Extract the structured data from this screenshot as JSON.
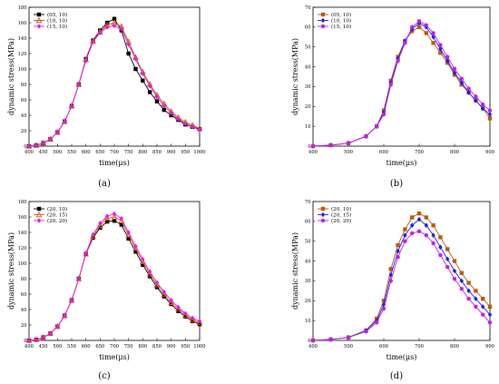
{
  "chart_data": [
    {
      "panel_label": "(a)",
      "type": "line",
      "xlabel": "time(μs)",
      "ylabel": "dynamic stress(MPa)",
      "xlim": [
        400,
        1000
      ],
      "ylim": [
        0,
        180
      ],
      "xticks": [
        400,
        450,
        500,
        550,
        600,
        650,
        700,
        750,
        800,
        850,
        900,
        950,
        1000
      ],
      "yticks": [
        0,
        20,
        40,
        60,
        80,
        100,
        120,
        140,
        160,
        180
      ],
      "legend_position": "top-left",
      "series": [
        {
          "name": "(05, 10)",
          "color": "#000000",
          "marker": "square",
          "x": [
            400,
            425,
            450,
            475,
            500,
            525,
            550,
            575,
            600,
            625,
            650,
            675,
            700,
            725,
            750,
            775,
            800,
            825,
            850,
            875,
            900,
            925,
            950,
            975,
            1000
          ],
          "y": [
            0,
            1,
            4,
            9,
            18,
            32,
            52,
            80,
            113,
            137,
            150,
            160,
            165,
            150,
            120,
            100,
            85,
            70,
            58,
            47,
            40,
            34,
            28,
            25,
            22
          ]
        },
        {
          "name": "(10, 10)",
          "color": "#b85a10",
          "marker": "triangle",
          "x": [
            400,
            425,
            450,
            475,
            500,
            525,
            550,
            575,
            600,
            625,
            650,
            675,
            700,
            725,
            750,
            775,
            800,
            825,
            850,
            875,
            900,
            925,
            950,
            975,
            1000
          ],
          "y": [
            0,
            1,
            4,
            9,
            18,
            32,
            52,
            80,
            112,
            136,
            148,
            157,
            160,
            155,
            135,
            115,
            96,
            80,
            66,
            55,
            45,
            37,
            31,
            27,
            23
          ]
        },
        {
          "name": "(15, 10)",
          "color": "#e01ee0",
          "marker": "diamond",
          "x": [
            400,
            425,
            450,
            475,
            500,
            525,
            550,
            575,
            600,
            625,
            650,
            675,
            700,
            725,
            750,
            775,
            800,
            825,
            850,
            875,
            900,
            925,
            950,
            975,
            1000
          ],
          "y": [
            0,
            1,
            4,
            9,
            18,
            32,
            52,
            80,
            111,
            135,
            147,
            154,
            156,
            152,
            132,
            113,
            94,
            78,
            64,
            52,
            43,
            35,
            29,
            25,
            21
          ]
        }
      ]
    },
    {
      "panel_label": "(b)",
      "type": "line",
      "xlabel": "time(μs)",
      "ylabel": "dynamic stress(MPa)",
      "xlim": [
        400,
        900
      ],
      "ylim": [
        0,
        70
      ],
      "xticks": [
        400,
        500,
        600,
        700,
        800,
        900
      ],
      "yticks": [
        0,
        10,
        20,
        30,
        40,
        50,
        60,
        70
      ],
      "legend_position": "top-left",
      "series": [
        {
          "name": "(05, 10)",
          "color": "#b85a10",
          "marker": "square",
          "x": [
            400,
            450,
            500,
            550,
            580,
            600,
            620,
            640,
            660,
            680,
            700,
            720,
            740,
            760,
            780,
            800,
            820,
            840,
            860,
            880,
            900
          ],
          "y": [
            0,
            0.5,
            1.5,
            5,
            10,
            18,
            33,
            45,
            53,
            58,
            60,
            57,
            52,
            47,
            42,
            36,
            31,
            27,
            23,
            19,
            14
          ]
        },
        {
          "name": "(10, 10)",
          "color": "#2020e0",
          "marker": "diamond",
          "x": [
            400,
            450,
            500,
            550,
            580,
            600,
            620,
            640,
            660,
            680,
            700,
            720,
            740,
            760,
            780,
            800,
            820,
            840,
            860,
            880,
            900
          ],
          "y": [
            0,
            0.5,
            1.5,
            5,
            10,
            17,
            32,
            44,
            53,
            59,
            62,
            60,
            55,
            49,
            43,
            37,
            32,
            27,
            23,
            19,
            16
          ]
        },
        {
          "name": "(15, 10)",
          "color": "#c020e0",
          "marker": "circle",
          "x": [
            400,
            450,
            500,
            550,
            580,
            600,
            620,
            640,
            660,
            680,
            700,
            720,
            740,
            760,
            780,
            800,
            820,
            840,
            860,
            880,
            900
          ],
          "y": [
            0,
            0.5,
            1.5,
            5,
            10,
            16,
            31,
            43,
            52,
            60,
            63,
            61,
            57,
            51,
            45,
            39,
            34,
            29,
            25,
            21,
            18
          ]
        }
      ]
    },
    {
      "panel_label": "(c)",
      "type": "line",
      "xlabel": "time(μs)",
      "ylabel": "dynamic stress(MPa)",
      "xlim": [
        400,
        1000
      ],
      "ylim": [
        0,
        180
      ],
      "xticks": [
        400,
        450,
        500,
        550,
        600,
        650,
        700,
        750,
        800,
        850,
        900,
        950,
        1000
      ],
      "yticks": [
        0,
        20,
        40,
        60,
        80,
        100,
        120,
        140,
        160,
        180
      ],
      "legend_position": "top-left",
      "series": [
        {
          "name": "(20, 10)",
          "color": "#000000",
          "marker": "square",
          "x": [
            400,
            425,
            450,
            475,
            500,
            525,
            550,
            575,
            600,
            625,
            650,
            675,
            700,
            725,
            750,
            775,
            800,
            825,
            850,
            875,
            900,
            925,
            950,
            975,
            1000
          ],
          "y": [
            0,
            1,
            4,
            9,
            18,
            32,
            52,
            80,
            112,
            133,
            146,
            154,
            155,
            150,
            132,
            115,
            98,
            83,
            69,
            57,
            47,
            38,
            31,
            25,
            21
          ]
        },
        {
          "name": "(20, 15)",
          "color": "#e06010",
          "marker": "triangle",
          "x": [
            400,
            425,
            450,
            475,
            500,
            525,
            550,
            575,
            600,
            625,
            650,
            675,
            700,
            725,
            750,
            775,
            800,
            825,
            850,
            875,
            900,
            925,
            950,
            975,
            1000
          ],
          "y": [
            0,
            1,
            4,
            9,
            18,
            32,
            52,
            80,
            112,
            135,
            149,
            158,
            160,
            155,
            137,
            119,
            102,
            86,
            72,
            60,
            49,
            41,
            33,
            27,
            23
          ]
        },
        {
          "name": "(20, 20)",
          "color": "#e01ee0",
          "marker": "diamond",
          "x": [
            400,
            425,
            450,
            475,
            500,
            525,
            550,
            575,
            600,
            625,
            650,
            675,
            700,
            725,
            750,
            775,
            800,
            825,
            850,
            875,
            900,
            925,
            950,
            975,
            1000
          ],
          "y": [
            0,
            1,
            4,
            9,
            18,
            32,
            52,
            80,
            113,
            137,
            152,
            161,
            164,
            158,
            140,
            122,
            105,
            89,
            75,
            63,
            52,
            43,
            35,
            29,
            25
          ]
        }
      ]
    },
    {
      "panel_label": "(d)",
      "type": "line",
      "xlabel": "time(μs)",
      "ylabel": "dynamic stress(MPa)",
      "xlim": [
        400,
        900
      ],
      "ylim": [
        0,
        70
      ],
      "xticks": [
        400,
        500,
        600,
        700,
        800,
        900
      ],
      "yticks": [
        0,
        10,
        20,
        30,
        40,
        50,
        60,
        70
      ],
      "legend_position": "top-left",
      "series": [
        {
          "name": "(20, 10)",
          "color": "#b85a10",
          "marker": "square",
          "x": [
            400,
            450,
            500,
            550,
            580,
            600,
            620,
            640,
            660,
            680,
            700,
            720,
            740,
            760,
            780,
            800,
            820,
            840,
            860,
            880,
            900
          ],
          "y": [
            0,
            0.5,
            1.5,
            5,
            11,
            20,
            36,
            48,
            56,
            62,
            64,
            62,
            58,
            52,
            46,
            40,
            34,
            29,
            25,
            21,
            17
          ]
        },
        {
          "name": "(20, 15)",
          "color": "#2020e0",
          "marker": "diamond",
          "x": [
            400,
            450,
            500,
            550,
            580,
            600,
            620,
            640,
            660,
            680,
            700,
            720,
            740,
            760,
            780,
            800,
            820,
            840,
            860,
            880,
            900
          ],
          "y": [
            0,
            0.5,
            1.5,
            5,
            10,
            18,
            33,
            45,
            53,
            58,
            61,
            58,
            53,
            47,
            41,
            35,
            30,
            25,
            21,
            17,
            13
          ]
        },
        {
          "name": "(20, 20)",
          "color": "#c020e0",
          "marker": "circle",
          "x": [
            400,
            450,
            500,
            550,
            580,
            600,
            620,
            640,
            660,
            680,
            700,
            720,
            740,
            760,
            780,
            800,
            820,
            840,
            860,
            880,
            900
          ],
          "y": [
            0,
            0.5,
            1.5,
            4.5,
            9,
            16,
            30,
            42,
            50,
            54,
            55,
            53,
            49,
            43,
            37,
            31,
            26,
            21,
            17,
            13,
            9
          ]
        }
      ]
    }
  ]
}
